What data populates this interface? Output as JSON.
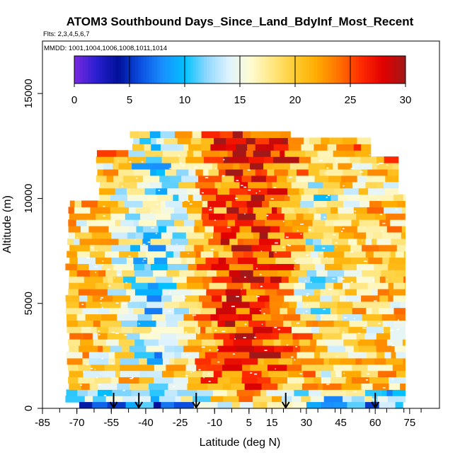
{
  "chart_data": {
    "type": "heatmap",
    "title": "ATOM3 Southbound Days_Since_Land_BdyInf_Most_Recent",
    "subtitle_flights": "Flts: 2,3,4,5,6,7",
    "subtitle_dates": "MMDD: 1001,1004,1006,1008,1011,1014",
    "xlabel": "Latitude (deg N)",
    "ylabel": "Altitude (m)",
    "xlim": [
      -85,
      88
    ],
    "ylim": [
      0,
      17500
    ],
    "x_ticks": [
      -85,
      -70,
      -55,
      -40,
      -25,
      -10,
      5,
      15,
      30,
      45,
      60,
      75
    ],
    "x_tick_labels": [
      "-85",
      "-70",
      "-55",
      "-40",
      "-25",
      "-10",
      "5",
      "15",
      "30",
      "45",
      "60",
      "75"
    ],
    "y_ticks": [
      0,
      5000,
      10000,
      15000
    ],
    "y_tick_labels": [
      "0",
      "5000",
      "10000",
      "15000"
    ],
    "colorbar": {
      "min": 0,
      "max": 30,
      "ticks": [
        0,
        5,
        10,
        15,
        20,
        25,
        30
      ],
      "tick_labels": [
        "0",
        "5",
        "10",
        "15",
        "20",
        "25",
        "30"
      ],
      "colors": [
        "#7a2ae0",
        "#2a1fd0",
        "#00109a",
        "#0a4fe0",
        "#1a8fff",
        "#00c0ff",
        "#8fd8ff",
        "#dff3ff",
        "#fffbd0",
        "#ffe680",
        "#ffcc30",
        "#ffaa00",
        "#ff7000",
        "#ff2a00",
        "#e00000",
        "#a01818"
      ]
    },
    "arrow_latitudes": [
      -54,
      -43,
      -18,
      21,
      60
    ],
    "grid": false
  },
  "colors": {
    "axis": "#000000",
    "background": "#ffffff",
    "missing": "#ffffff"
  }
}
